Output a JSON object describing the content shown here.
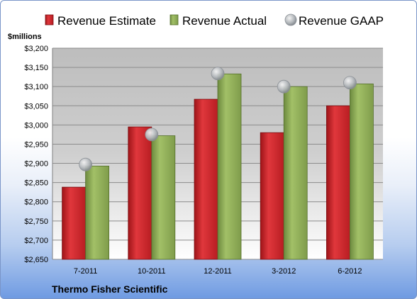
{
  "chart_data": {
    "type": "bar",
    "ylabel": "$millions",
    "categories": [
      "7-2011",
      "10-2011",
      "12-2011",
      "3-2012",
      "6-2012"
    ],
    "ylim": [
      2650,
      3200
    ],
    "yticks": [
      "$3,200",
      "$3,150",
      "$3,100",
      "$3,050",
      "$3,000",
      "$2,950",
      "$2,900",
      "$2,850",
      "$2,800",
      "$2,750",
      "$2,700",
      "$2,650"
    ],
    "ytick_values": [
      3200,
      3150,
      3100,
      3050,
      3000,
      2950,
      2900,
      2850,
      2800,
      2750,
      2700,
      2650
    ],
    "series": [
      {
        "name": "Revenue Estimate",
        "kind": "bar",
        "color": "#d42a2f",
        "values": [
          2838,
          2995,
          3067,
          2980,
          3050
        ]
      },
      {
        "name": "Revenue Actual",
        "kind": "bar",
        "color": "#8fae5a",
        "values": [
          2893,
          2972,
          3133,
          3100,
          3107
        ]
      },
      {
        "name": "Revenue GAAP",
        "kind": "marker",
        "color": "#b0b4b8",
        "values": [
          2897,
          2975,
          3134,
          3100,
          3110
        ]
      }
    ],
    "legend_position": "top",
    "grid": true
  },
  "footer": {
    "company": "Thermo Fisher Scientific"
  }
}
